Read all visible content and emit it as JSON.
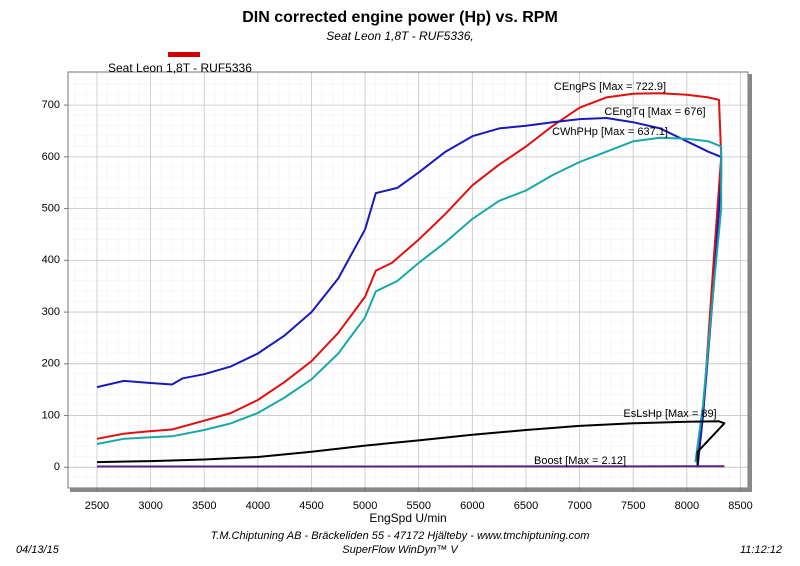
{
  "chart_data": {
    "type": "line",
    "title": "DIN corrected engine power (Hp) vs. RPM",
    "subtitle": "Seat Leon 1,8T - RUF5336,",
    "legend_label": "Seat Leon 1,8T - RUF5336",
    "legend_color": "#d00000",
    "x_label": "EngSpd U/min",
    "footer": [
      "T.M.Chiptuning AB -  Bräckeliden 55 - 47172 Hjälteby - www.tmchiptuning.com",
      "SuperFlow WinDyn™ V"
    ],
    "date": "04/13/15",
    "time": "11:12:12",
    "xlim": [
      2230,
      8570
    ],
    "ylim": [
      -40,
      764
    ],
    "xticks": [
      2500,
      3000,
      3500,
      4000,
      4500,
      5000,
      5500,
      6000,
      6500,
      7000,
      7500,
      8000,
      8500
    ],
    "yticks": [
      0,
      100,
      200,
      300,
      400,
      500,
      600,
      700
    ],
    "grid": true,
    "series": [
      {
        "name": "CEngPS",
        "label": "CEngPS [Max = 722.9]",
        "color": "#e01010",
        "x": [
          2500,
          2750,
          3000,
          3200,
          3500,
          3750,
          4000,
          4250,
          4500,
          4750,
          5000,
          5100,
          5250,
          5500,
          5750,
          6000,
          6250,
          6500,
          6750,
          7000,
          7250,
          7500,
          7750,
          8000,
          8200,
          8300,
          8320,
          8250,
          8150,
          8100
        ],
        "values": [
          55,
          65,
          70,
          73,
          90,
          105,
          130,
          165,
          205,
          260,
          330,
          380,
          395,
          440,
          490,
          545,
          585,
          620,
          660,
          695,
          715,
          722,
          723,
          720,
          715,
          710,
          600,
          400,
          100,
          20
        ]
      },
      {
        "name": "CEngTq",
        "label": "CEngTq [Max = 676]",
        "color": "#1a1ab8",
        "x": [
          2500,
          2750,
          3000,
          3200,
          3300,
          3500,
          3750,
          4000,
          4250,
          4500,
          4750,
          5000,
          5100,
          5300,
          5500,
          5750,
          6000,
          6250,
          6500,
          6750,
          7000,
          7250,
          7500,
          7750,
          8000,
          8200,
          8320,
          8320,
          8250,
          8150,
          8100
        ],
        "values": [
          155,
          167,
          163,
          160,
          172,
          180,
          195,
          220,
          255,
          300,
          365,
          460,
          530,
          540,
          570,
          610,
          640,
          655,
          660,
          667,
          673,
          675,
          667,
          655,
          630,
          610,
          600,
          560,
          350,
          100,
          0
        ]
      },
      {
        "name": "CWhPHp",
        "label": "CWhPHp [Max = 637.1]",
        "color": "#18a8a8",
        "x": [
          2500,
          2750,
          3000,
          3200,
          3500,
          3750,
          4000,
          4250,
          4500,
          4750,
          5000,
          5100,
          5300,
          5500,
          5750,
          6000,
          6250,
          6500,
          6750,
          7000,
          7250,
          7500,
          7750,
          8000,
          8200,
          8320,
          8320,
          8250,
          8150,
          8080
        ],
        "values": [
          45,
          55,
          58,
          60,
          72,
          85,
          105,
          135,
          170,
          220,
          290,
          340,
          360,
          395,
          435,
          480,
          515,
          535,
          565,
          590,
          610,
          630,
          637,
          635,
          630,
          620,
          500,
          350,
          120,
          10
        ]
      },
      {
        "name": "EsLsHp",
        "label": "EsLsHp [Max = 89]",
        "color": "#000000",
        "x": [
          2500,
          3000,
          3500,
          4000,
          4500,
          5000,
          5500,
          6000,
          6500,
          7000,
          7500,
          8000,
          8300,
          8350,
          8100,
          8100
        ],
        "values": [
          10,
          12,
          15,
          20,
          30,
          42,
          52,
          63,
          72,
          80,
          85,
          88,
          89,
          85,
          30,
          0
        ]
      },
      {
        "name": "Boost",
        "label": "Boost  [Max = 2.12]",
        "color": "#602080",
        "x": [
          2500,
          4000,
          6000,
          8000,
          8350
        ],
        "values": [
          1.5,
          1.6,
          1.8,
          2,
          2.12
        ]
      }
    ]
  }
}
